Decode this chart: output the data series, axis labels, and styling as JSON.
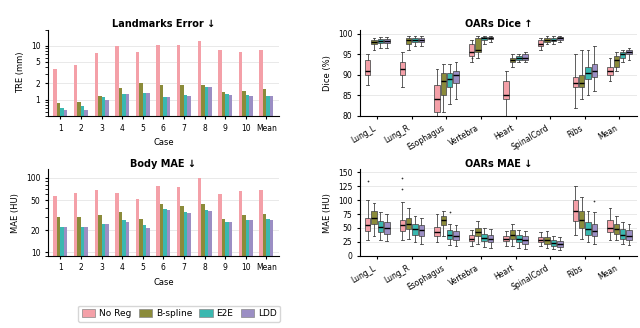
{
  "colors": {
    "NoReg": "#f4a0a8",
    "Bspline": "#8b8b3a",
    "E2E": "#3ab8b0",
    "LDD": "#9b8ec4"
  },
  "landmark_cases": [
    "1",
    "2",
    "3",
    "4",
    "5",
    "6",
    "7",
    "8",
    "9",
    "10",
    "Mean"
  ],
  "landmark_NoReg": [
    3.7,
    4.4,
    7.2,
    9.9,
    7.8,
    10.5,
    10.5,
    12.3,
    8.2,
    7.6,
    8.5
  ],
  "landmark_Bspline": [
    0.85,
    0.9,
    1.15,
    1.65,
    2.0,
    1.85,
    1.9,
    1.85,
    1.4,
    1.45,
    1.55
  ],
  "landmark_E2E": [
    0.7,
    0.75,
    1.1,
    1.3,
    1.35,
    1.1,
    1.2,
    1.75,
    1.25,
    1.2,
    1.15
  ],
  "landmark_LDD": [
    0.65,
    0.65,
    1.0,
    1.3,
    1.35,
    1.1,
    1.15,
    1.75,
    1.2,
    1.15,
    1.15
  ],
  "body_mae_cases": [
    "1",
    "2",
    "3",
    "4",
    "5",
    "6",
    "7",
    "8",
    "9",
    "10",
    "Mean"
  ],
  "body_NoReg": [
    58,
    62,
    68,
    63,
    52,
    78,
    76,
    99,
    60,
    67,
    68
  ],
  "body_Bspline": [
    30,
    30,
    32,
    35,
    28,
    45,
    42,
    45,
    28,
    32,
    33
  ],
  "body_E2E": [
    22,
    22,
    24,
    27,
    23,
    38,
    35,
    37,
    26,
    27,
    28
  ],
  "body_LDD": [
    22,
    22,
    24,
    26,
    21,
    37,
    34,
    36,
    26,
    27,
    27
  ],
  "oars_dice_categories": [
    "Lung_L",
    "Lung_R",
    "Esophagus",
    "Vertebra",
    "Heart",
    "SpinalCord",
    "Ribs",
    "Mean"
  ],
  "oars_dice_NoReg_median": [
    91.0,
    91.5,
    84.0,
    95.5,
    85.0,
    97.5,
    88.0,
    91.0
  ],
  "oars_dice_NoReg_q1": [
    90.0,
    90.0,
    81.0,
    94.5,
    84.0,
    97.0,
    87.0,
    90.0
  ],
  "oars_dice_NoReg_q3": [
    93.5,
    93.0,
    87.5,
    97.5,
    88.5,
    98.5,
    89.5,
    92.0
  ],
  "oars_dice_NoReg_whislo": [
    87.5,
    87.0,
    78.0,
    93.0,
    80.0,
    96.0,
    82.0,
    88.5
  ],
  "oars_dice_NoReg_whishi": [
    95.0,
    95.5,
    91.5,
    98.5,
    91.0,
    99.0,
    95.0,
    94.0
  ],
  "oars_dice_NoReg_fliers": [
    [],
    [],
    [],
    [
      94.0
    ],
    [],
    [],
    [],
    []
  ],
  "oars_dice_Bspline_median": [
    98.0,
    98.5,
    88.5,
    96.0,
    93.5,
    98.5,
    88.0,
    93.5
  ],
  "oars_dice_Bspline_q1": [
    97.5,
    97.5,
    85.0,
    95.5,
    93.0,
    98.0,
    87.0,
    92.0
  ],
  "oars_dice_Bspline_q3": [
    98.5,
    99.0,
    90.5,
    99.0,
    94.0,
    99.0,
    90.0,
    94.5
  ],
  "oars_dice_Bspline_whislo": [
    96.0,
    96.0,
    81.0,
    94.0,
    92.0,
    97.5,
    84.0,
    91.0
  ],
  "oars_dice_Bspline_whishi": [
    99.0,
    99.5,
    92.5,
    99.5,
    95.0,
    99.5,
    96.0,
    95.5
  ],
  "oars_dice_Bspline_fliers": [
    [],
    [],
    [],
    [],
    [],
    [],
    [],
    []
  ],
  "oars_dice_E2E_median": [
    98.2,
    98.5,
    89.0,
    99.0,
    94.0,
    98.5,
    90.5,
    95.0
  ],
  "oars_dice_E2E_q1": [
    97.8,
    98.0,
    87.0,
    98.5,
    93.5,
    98.2,
    89.0,
    94.0
  ],
  "oars_dice_E2E_q3": [
    98.7,
    99.0,
    90.5,
    99.2,
    94.5,
    99.0,
    92.0,
    95.5
  ],
  "oars_dice_E2E_whislo": [
    96.5,
    97.0,
    83.0,
    97.5,
    93.0,
    97.5,
    85.0,
    93.0
  ],
  "oars_dice_E2E_whishi": [
    99.2,
    99.5,
    92.5,
    99.5,
    95.0,
    99.5,
    96.0,
    96.0
  ],
  "oars_dice_E2E_fliers": [
    [],
    [],
    [],
    [],
    [],
    [],
    [],
    []
  ],
  "oars_dice_LDD_median": [
    98.2,
    98.5,
    90.0,
    99.0,
    94.0,
    99.0,
    91.0,
    95.5
  ],
  "oars_dice_LDD_q1": [
    97.8,
    98.0,
    88.0,
    98.8,
    93.5,
    98.5,
    89.5,
    95.0
  ],
  "oars_dice_LDD_q3": [
    98.8,
    99.0,
    91.0,
    99.3,
    95.0,
    99.2,
    92.5,
    96.0
  ],
  "oars_dice_LDD_whislo": [
    96.5,
    97.0,
    84.0,
    98.0,
    93.0,
    98.0,
    86.0,
    93.5
  ],
  "oars_dice_LDD_whishi": [
    99.2,
    99.5,
    93.0,
    99.5,
    95.5,
    99.5,
    97.0,
    96.5
  ],
  "oars_dice_LDD_fliers": [
    [],
    [],
    [],
    [],
    [],
    [],
    [],
    []
  ],
  "oars_mae_categories": [
    "Lung_L",
    "Lung_R",
    "Esophagus",
    "Vertebra",
    "Heart",
    "SpinalCord",
    "Ribs",
    "Mean"
  ],
  "oars_mae_NoReg_median": [
    55.0,
    55.0,
    42.0,
    30.0,
    30.0,
    28.0,
    80.0,
    50.0
  ],
  "oars_mae_NoReg_q1": [
    45.0,
    44.0,
    35.0,
    26.0,
    26.0,
    24.0,
    62.0,
    42.0
  ],
  "oars_mae_NoReg_q3": [
    68.0,
    65.0,
    52.0,
    38.0,
    36.0,
    34.0,
    100.0,
    65.0
  ],
  "oars_mae_NoReg_whislo": [
    28.0,
    28.0,
    25.0,
    18.0,
    18.0,
    18.0,
    38.0,
    28.0
  ],
  "oars_mae_NoReg_whishi": [
    100.0,
    97.0,
    75.0,
    47.0,
    44.0,
    42.0,
    125.0,
    85.0
  ],
  "oars_mae_NoReg_fliers": [
    [
      135.0
    ],
    [
      120.0,
      140.0
    ],
    [],
    [],
    [],
    [],
    [],
    []
  ],
  "oars_mae_Bspline_median": [
    68.0,
    58.0,
    65.0,
    42.0,
    38.0,
    28.0,
    65.0,
    48.0
  ],
  "oars_mae_Bspline_q1": [
    57.0,
    48.0,
    55.0,
    35.0,
    30.0,
    22.0,
    50.0,
    40.0
  ],
  "oars_mae_Bspline_q3": [
    80.0,
    68.0,
    72.0,
    50.0,
    46.0,
    34.0,
    80.0,
    58.0
  ],
  "oars_mae_Bspline_whislo": [
    35.0,
    30.0,
    35.0,
    22.0,
    18.0,
    14.0,
    30.0,
    28.0
  ],
  "oars_mae_Bspline_whishi": [
    94.0,
    85.0,
    80.0,
    62.0,
    58.0,
    44.0,
    105.0,
    72.0
  ],
  "oars_mae_Bspline_fliers": [
    [],
    [],
    [],
    [],
    [],
    [],
    [],
    []
  ],
  "oars_mae_E2E_median": [
    52.0,
    48.0,
    38.0,
    32.0,
    30.0,
    23.0,
    48.0,
    38.0
  ],
  "oars_mae_E2E_q1": [
    42.0,
    38.0,
    30.0,
    26.0,
    24.0,
    18.0,
    38.0,
    30.0
  ],
  "oars_mae_E2E_q3": [
    63.0,
    58.0,
    46.0,
    40.0,
    37.0,
    28.0,
    60.0,
    48.0
  ],
  "oars_mae_E2E_whislo": [
    28.0,
    25.0,
    20.0,
    16.0,
    14.0,
    12.0,
    24.0,
    22.0
  ],
  "oars_mae_E2E_whishi": [
    78.0,
    72.0,
    58.0,
    50.0,
    47.0,
    36.0,
    80.0,
    60.0
  ],
  "oars_mae_E2E_fliers": [
    [],
    [],
    [
      78.0
    ],
    [],
    [],
    [],
    [],
    []
  ],
  "oars_mae_LDD_median": [
    50.0,
    46.0,
    35.0,
    30.0,
    28.0,
    22.0,
    45.0,
    36.0
  ],
  "oars_mae_LDD_q1": [
    40.0,
    36.0,
    28.0,
    24.0,
    22.0,
    16.0,
    35.0,
    28.0
  ],
  "oars_mae_LDD_q3": [
    60.0,
    56.0,
    44.0,
    38.0,
    35.0,
    26.0,
    58.0,
    46.0
  ],
  "oars_mae_LDD_whislo": [
    26.0,
    22.0,
    18.0,
    14.0,
    12.0,
    10.0,
    22.0,
    20.0
  ],
  "oars_mae_LDD_whishi": [
    75.0,
    68.0,
    55.0,
    48.0,
    44.0,
    34.0,
    78.0,
    58.0
  ],
  "oars_mae_LDD_fliers": [
    [],
    [],
    [],
    [],
    [],
    [],
    [
      98.0
    ],
    []
  ],
  "title_landmark": "Landmarks Error ↓",
  "title_body": "Body MAE ↓",
  "title_oars_dice": "OARs Dice ↑",
  "title_oars_mae": "OARs MAE ↓",
  "ylabel_landmark": "TRE (mm)",
  "ylabel_body": "MAE (HU)",
  "ylabel_oars_dice": "Dice (%)",
  "ylabel_oars_mae": "MAE (HU)",
  "xlabel_cases": "Case",
  "legend_labels": [
    "No Reg",
    "B-spline",
    "E2E",
    "LDD"
  ]
}
